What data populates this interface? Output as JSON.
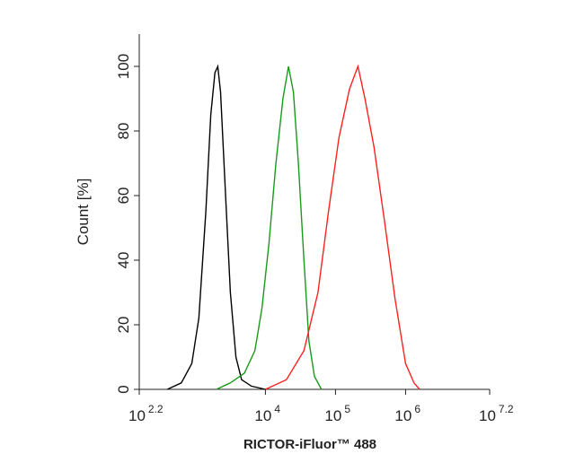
{
  "chart_data": {
    "type": "line",
    "x_label": "RICTOR-iFluor™ 488",
    "y_label": "Count [%]",
    "log_x": true,
    "xlim": [
      158.49,
      15848931.92
    ],
    "xticks": [
      {
        "value": 158.49,
        "label": "10",
        "exponent": "2.2"
      },
      {
        "value": 10000,
        "label": "10",
        "exponent": "4"
      },
      {
        "value": 100000,
        "label": "10",
        "exponent": "5"
      },
      {
        "value": 1000000,
        "label": "10",
        "exponent": "6"
      },
      {
        "value": 15848931.92,
        "label": "10",
        "exponent": "7.2"
      }
    ],
    "ylim": [
      0,
      110
    ],
    "yticks": [
      0,
      20,
      40,
      60,
      80,
      100
    ],
    "series": [
      {
        "color": "#000000",
        "x": [
          398,
          631,
          891,
          1122,
          1413,
          1660,
          1905,
          2089,
          2291,
          2630,
          3162,
          3802,
          4571,
          6310,
          10000
        ],
        "values": [
          0,
          2,
          8,
          22,
          55,
          85,
          98,
          100,
          92,
          65,
          30,
          10,
          3,
          1,
          0
        ]
      },
      {
        "color": "#1a9a1a",
        "x": [
          1995,
          3162,
          5012,
          7079,
          8913,
          11220,
          14125,
          17783,
          21380,
          25119,
          29512,
          35481,
          41687,
          50119,
          63096
        ],
        "values": [
          0,
          2,
          5,
          12,
          25,
          45,
          70,
          90,
          100,
          92,
          70,
          40,
          15,
          4,
          0
        ]
      },
      {
        "color": "#ff2020",
        "x": [
          10000,
          19953,
          35481,
          56234,
          79433,
          112202,
          158489,
          208930,
          263027,
          354813,
          501187,
          707946,
          1000000,
          1318257,
          1584893
        ],
        "values": [
          0,
          3,
          12,
          30,
          55,
          78,
          93,
          100,
          90,
          75,
          52,
          28,
          8,
          2,
          0
        ]
      }
    ]
  }
}
